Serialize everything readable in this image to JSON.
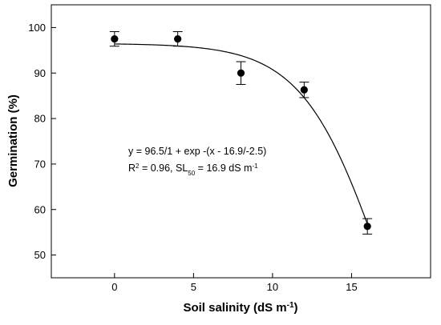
{
  "chart_data": {
    "type": "scatter",
    "title": "",
    "xlabel": "Soil salinity (dS m",
    "xlabel_sup": "-1",
    "xlabel_end": ")",
    "ylabel": "Germination (%)",
    "xlim": [
      -4,
      20
    ],
    "ylim": [
      45,
      105
    ],
    "xticks": [
      0,
      5,
      10,
      15
    ],
    "yticks": [
      50,
      60,
      70,
      80,
      90,
      100
    ],
    "grid": false,
    "series": [
      {
        "x": [
          0,
          4,
          8,
          12,
          16
        ],
        "y": [
          97.5,
          97.5,
          90,
          86.3,
          56.3
        ],
        "error": [
          1.6,
          1.6,
          2.5,
          1.7,
          1.7
        ],
        "color": "#000000"
      }
    ],
    "fit": {
      "model": "y = a / (1 + exp(-(x - x0) / b))",
      "a": 96.5,
      "x0": 16.9,
      "b": -2.5,
      "x_range": [
        0,
        16
      ]
    },
    "annotations": {
      "equation": "y = 96.5/1 + exp -(x - 16.9/-2.5)",
      "r2_prefix": "R",
      "r2_sup": "2",
      "r2_rest": " = 0.96, SL",
      "sl_sub": "50",
      "sl_rest": " =  16.9 dS m",
      "sl_sup": "-1"
    }
  }
}
